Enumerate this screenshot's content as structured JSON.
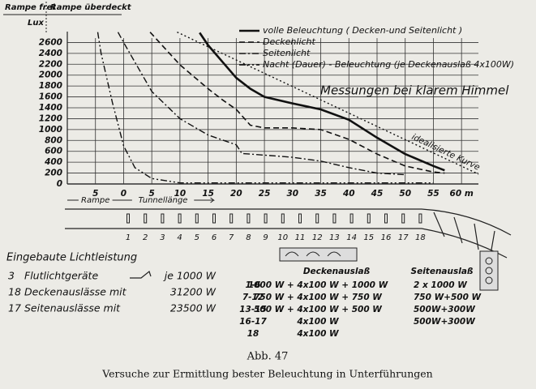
{
  "chart_data": {
    "type": "line",
    "header_labels": [
      "Rampe frei",
      "Rampe überdeckt"
    ],
    "ylabel": "Lux",
    "xlabels": [
      "Rampe",
      "Tunnellänge"
    ],
    "annotation": "Messungen bei klarem Himmel",
    "xlim": [
      -10,
      63
    ],
    "xticks": [
      {
        "value": -5,
        "label": "5"
      },
      0,
      5,
      10,
      15,
      20,
      25,
      30,
      35,
      40,
      45,
      50,
      55,
      {
        "value": 60,
        "label": "60 m"
      }
    ],
    "ylim": [
      0,
      2800
    ],
    "yticks": [
      0,
      200,
      400,
      600,
      800,
      1000,
      1200,
      1400,
      1600,
      1800,
      2000,
      2200,
      2400,
      2600
    ],
    "grid": true,
    "legend": "upper right",
    "series": [
      {
        "name": "volle Beleuchtung ( Decken-und Seitenlicht )",
        "color": "#111111",
        "dash": "solid",
        "width": 2.6,
        "legend": true,
        "x": [
          13.5,
          15,
          17.5,
          20,
          22.5,
          25,
          30,
          35,
          40,
          45,
          50,
          55,
          57
        ],
        "values": [
          2780,
          2550,
          2250,
          1950,
          1750,
          1600,
          1480,
          1370,
          1180,
          850,
          550,
          330,
          250
        ]
      },
      {
        "name": "Deckenlicht",
        "color": "#111111",
        "dash": "dashed",
        "width": 1.6,
        "legend": true,
        "x": [
          4.7,
          10,
          15,
          17.5,
          20,
          22.5,
          25,
          30,
          35,
          40,
          45,
          50,
          55,
          57
        ],
        "values": [
          2790,
          2190,
          1750,
          1550,
          1370,
          1080,
          1030,
          1030,
          1000,
          820,
          550,
          330,
          220,
          200
        ]
      },
      {
        "name": "Seitenlicht",
        "color": "#111111",
        "dash": "dashdot",
        "width": 1.4,
        "legend": true,
        "x": [
          -1,
          0,
          5,
          10,
          15,
          20,
          21,
          25,
          30,
          35,
          40,
          45,
          50
        ],
        "values": [
          2790,
          2600,
          1700,
          1200,
          900,
          720,
          560,
          530,
          490,
          420,
          300,
          200,
          170
        ]
      },
      {
        "name": "Nacht (Dauer) - Beleuchtung (je Deckenauslaß 4x100W)",
        "color": "#111111",
        "dash": "dashdotdot",
        "width": 1.4,
        "legend": true,
        "x": [
          -4.6,
          -4,
          -2,
          0,
          2,
          5,
          10,
          20,
          40,
          55
        ],
        "values": [
          2790,
          2400,
          1500,
          700,
          300,
          100,
          20,
          20,
          20,
          20
        ]
      },
      {
        "name": "idealisierte Kurve",
        "color": "#111111",
        "dash": "dotted",
        "width": 1.4,
        "legend": false,
        "x": [
          9.5,
          63
        ],
        "values": [
          2790,
          180
        ]
      }
    ]
  },
  "figure": {
    "outlet_numbers": [
      1,
      2,
      3,
      4,
      5,
      6,
      7,
      8,
      9,
      10,
      11,
      12,
      13,
      14,
      15,
      16,
      17,
      18
    ],
    "installed": {
      "title": "Eingebaute Lichtleistung",
      "rows": [
        [
          "3",
          "Flutlichtgeräte",
          "je 1000 W"
        ],
        [
          "18",
          "Deckenauslässe mit",
          "31200 W"
        ],
        [
          "17",
          "Seitenauslässe mit",
          "23500 W"
        ]
      ]
    },
    "ceiling": {
      "title": "Deckenauslaß",
      "rows": [
        [
          "1-6",
          "1000 W + 4x100 W + 1000 W"
        ],
        [
          "7-12",
          "750 W + 4x100 W + 750 W"
        ],
        [
          "13-15",
          "500 W + 4x100 W + 500 W"
        ],
        [
          "16-17",
          "4x100 W"
        ],
        [
          "18",
          "4x100 W"
        ]
      ]
    },
    "side": {
      "title": "Seitenauslaß",
      "rows": [
        "2 x 1000 W",
        "750 W+500 W",
        "500W+300W",
        "500W+300W"
      ]
    },
    "caption": {
      "label": "Abb. 47",
      "text": "Versuche zur Ermittlung bester Beleuchtung in Unterführungen"
    }
  }
}
